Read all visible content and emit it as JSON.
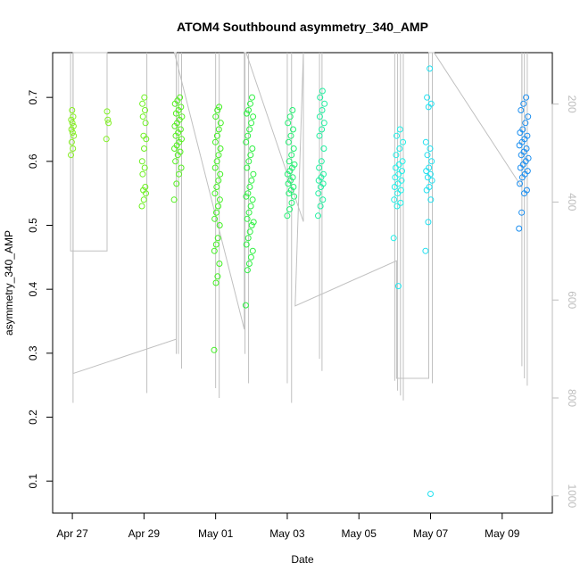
{
  "chart_data": {
    "type": "scatter",
    "title": "ATOM4 Southbound asymmetry_340_AMP",
    "xlabel": "Date",
    "ylabel": "asymmetry_340_AMP",
    "x_ticks": [
      "Apr 27",
      "Apr 29",
      "May 01",
      "May 03",
      "May 05",
      "May 07",
      "May 09"
    ],
    "x_tick_days": [
      0,
      2,
      4,
      6,
      8,
      10,
      12
    ],
    "xlim_days": [
      -0.55,
      13.4
    ],
    "y_ticks": [
      0.1,
      0.2,
      0.3,
      0.4,
      0.5,
      0.6,
      0.7
    ],
    "ylim": [
      0.05,
      0.77
    ],
    "y2_ticks": [
      200,
      400,
      600,
      800,
      1000
    ],
    "y2lim": [
      1035,
      95
    ],
    "grid": false,
    "legend": "none",
    "point_clusters": [
      {
        "day": 0.0,
        "width": 0.08,
        "y": [
          0.61,
          0.62,
          0.63,
          0.64,
          0.645,
          0.65,
          0.655,
          0.66,
          0.665,
          0.67,
          0.68
        ],
        "color": "#86f020"
      },
      {
        "day": 0.98,
        "width": 0.06,
        "y": [
          0.635,
          0.66,
          0.665,
          0.678
        ],
        "color": "#7ff020"
      },
      {
        "day": 2.0,
        "width": 0.12,
        "y": [
          0.53,
          0.54,
          0.55,
          0.555,
          0.56,
          0.58,
          0.59,
          0.6,
          0.62,
          0.635,
          0.64,
          0.66,
          0.67,
          0.68,
          0.69,
          0.7
        ],
        "color": "#6cf020"
      },
      {
        "day": 2.95,
        "width": 0.22,
        "y": [
          0.54,
          0.565,
          0.58,
          0.59,
          0.6,
          0.61,
          0.615,
          0.62,
          0.625,
          0.63,
          0.635,
          0.64,
          0.645,
          0.65,
          0.655,
          0.66,
          0.665,
          0.67,
          0.675,
          0.68,
          0.685,
          0.69,
          0.695,
          0.7
        ],
        "color": "#55f020"
      },
      {
        "day": 4.05,
        "width": 0.18,
        "y": [
          0.305,
          0.41,
          0.42,
          0.44,
          0.46,
          0.47,
          0.48,
          0.5,
          0.51,
          0.52,
          0.53,
          0.54,
          0.55,
          0.56,
          0.57,
          0.58,
          0.59,
          0.6,
          0.61,
          0.62,
          0.63,
          0.64,
          0.65,
          0.66,
          0.67,
          0.68,
          0.685
        ],
        "color": "#40f020"
      },
      {
        "day": 4.95,
        "width": 0.22,
        "y": [
          0.375,
          0.43,
          0.44,
          0.45,
          0.46,
          0.47,
          0.48,
          0.49,
          0.5,
          0.505,
          0.51,
          0.52,
          0.53,
          0.54,
          0.545,
          0.55,
          0.56,
          0.57,
          0.58,
          0.59,
          0.6,
          0.61,
          0.62,
          0.63,
          0.64,
          0.65,
          0.66,
          0.67,
          0.675,
          0.68,
          0.69,
          0.7
        ],
        "color": "#2cf040"
      },
      {
        "day": 6.1,
        "width": 0.2,
        "y": [
          0.515,
          0.525,
          0.535,
          0.545,
          0.55,
          0.555,
          0.56,
          0.565,
          0.57,
          0.575,
          0.58,
          0.585,
          0.59,
          0.595,
          0.6,
          0.61,
          0.62,
          0.63,
          0.64,
          0.65,
          0.66,
          0.67,
          0.68
        ],
        "color": "#20f070"
      },
      {
        "day": 6.95,
        "width": 0.18,
        "y": [
          0.515,
          0.53,
          0.54,
          0.55,
          0.56,
          0.565,
          0.57,
          0.575,
          0.58,
          0.59,
          0.6,
          0.62,
          0.64,
          0.65,
          0.66,
          0.67,
          0.68,
          0.69,
          0.7,
          0.71
        ],
        "color": "#20f0a0"
      },
      {
        "day": 9.1,
        "width": 0.26,
        "y": [
          0.48,
          0.53,
          0.535,
          0.54,
          0.55,
          0.555,
          0.56,
          0.565,
          0.57,
          0.575,
          0.58,
          0.585,
          0.59,
          0.595,
          0.6,
          0.61,
          0.62,
          0.63,
          0.64,
          0.65
        ],
        "color": "#20f0e8"
      },
      {
        "day": 9.1,
        "width": 0.02,
        "y": [
          0.405
        ],
        "color": "#20e8f0"
      },
      {
        "day": 9.95,
        "width": 0.18,
        "y": [
          0.46,
          0.505,
          0.54,
          0.555,
          0.56,
          0.57,
          0.575,
          0.58,
          0.585,
          0.59,
          0.6,
          0.61,
          0.62,
          0.63,
          0.685,
          0.69,
          0.7,
          0.745
        ],
        "color": "#20e0f0"
      },
      {
        "day": 10.0,
        "width": 0.02,
        "y": [
          0.08
        ],
        "color": "#20e0f0"
      },
      {
        "day": 12.6,
        "width": 0.26,
        "y": [
          0.495,
          0.52,
          0.55,
          0.555,
          0.565,
          0.575,
          0.58,
          0.585,
          0.59,
          0.595,
          0.6,
          0.605,
          0.61,
          0.615,
          0.62,
          0.625,
          0.63,
          0.635,
          0.64,
          0.645,
          0.65,
          0.66,
          0.67,
          0.68,
          0.69,
          0.7
        ],
        "color": "#1a8ef0"
      }
    ],
    "right_axis_line": {
      "color": "#c0c0c0",
      "points": [
        [
          -0.05,
          95
        ],
        [
          -0.05,
          500
        ],
        [
          0.97,
          500
        ],
        [
          0.97,
          95
        ],
        [
          0.02,
          95
        ],
        [
          0.02,
          750
        ],
        [
          2.9,
          680
        ],
        [
          2.9,
          95
        ],
        [
          2.85,
          95
        ],
        [
          4.8,
          660
        ],
        [
          4.8,
          95
        ],
        [
          4.85,
          95
        ],
        [
          6.45,
          440
        ],
        [
          6.45,
          95
        ],
        [
          6.22,
          612
        ],
        [
          9.05,
          520
        ],
        [
          9.05,
          760
        ],
        [
          9.95,
          760
        ],
        [
          9.95,
          95
        ],
        [
          10.1,
          95
        ],
        [
          12.55,
          370
        ],
        [
          12.55,
          95
        ]
      ],
      "spikes": [
        {
          "day": 0.02,
          "bottom": 810
        },
        {
          "day": 2.08,
          "bottom": 790
        },
        {
          "day": 2.9,
          "bottom": 710
        },
        {
          "day": 2.96,
          "bottom": 710
        },
        {
          "day": 3.05,
          "bottom": 740
        },
        {
          "day": 4.0,
          "bottom": 780
        },
        {
          "day": 4.1,
          "bottom": 800
        },
        {
          "day": 4.82,
          "bottom": 710
        },
        {
          "day": 4.92,
          "bottom": 770
        },
        {
          "day": 6.0,
          "bottom": 770
        },
        {
          "day": 6.12,
          "bottom": 810
        },
        {
          "day": 6.9,
          "bottom": 720
        },
        {
          "day": 6.97,
          "bottom": 745
        },
        {
          "day": 9.0,
          "bottom": 765
        },
        {
          "day": 9.08,
          "bottom": 785
        },
        {
          "day": 9.16,
          "bottom": 795
        },
        {
          "day": 9.24,
          "bottom": 805
        },
        {
          "day": 9.95,
          "bottom": 715
        },
        {
          "day": 10.05,
          "bottom": 770
        },
        {
          "day": 12.55,
          "bottom": 735
        },
        {
          "day": 12.62,
          "bottom": 760
        },
        {
          "day": 12.7,
          "bottom": 775
        }
      ]
    }
  }
}
